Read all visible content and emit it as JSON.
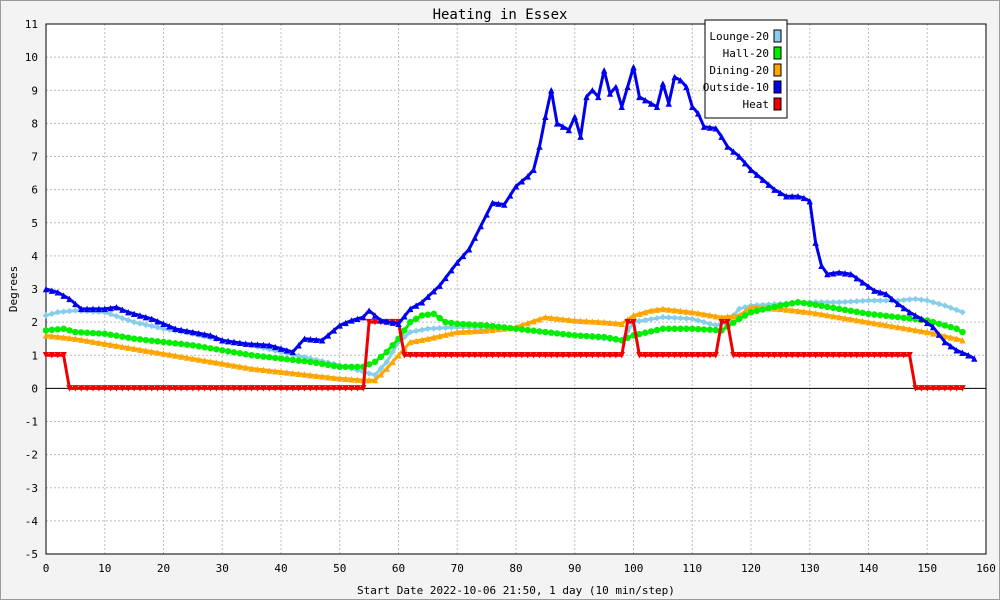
{
  "chart_data": {
    "type": "line",
    "title": "Heating in Essex",
    "xlabel": "Start Date 2022-10-06 21:50, 1 day (10 min/step)",
    "ylabel": "Degrees",
    "xlim": [
      0,
      160
    ],
    "ylim": [
      -5,
      11
    ],
    "xticks": [
      0,
      10,
      20,
      30,
      40,
      50,
      60,
      70,
      80,
      90,
      100,
      110,
      120,
      130,
      140,
      150,
      160
    ],
    "yticks": [
      -5,
      -4,
      -3,
      -2,
      -1,
      0,
      1,
      2,
      3,
      4,
      5,
      6,
      7,
      8,
      9,
      10,
      11
    ],
    "grid": true,
    "legend_position": "top-right",
    "series": [
      {
        "name": "Lounge-20",
        "color": "#87ceeb",
        "marker": "diamond",
        "points": [
          [
            0,
            2.2
          ],
          [
            2,
            2.3
          ],
          [
            5,
            2.35
          ],
          [
            10,
            2.3
          ],
          [
            15,
            2.0
          ],
          [
            20,
            1.8
          ],
          [
            25,
            1.65
          ],
          [
            30,
            1.45
          ],
          [
            35,
            1.3
          ],
          [
            40,
            1.1
          ],
          [
            45,
            0.9
          ],
          [
            50,
            0.7
          ],
          [
            54,
            0.5
          ],
          [
            56,
            0.4
          ],
          [
            58,
            0.8
          ],
          [
            60,
            1.4
          ],
          [
            62,
            1.7
          ],
          [
            65,
            1.8
          ],
          [
            70,
            1.85
          ],
          [
            75,
            1.85
          ],
          [
            80,
            1.8
          ],
          [
            85,
            1.7
          ],
          [
            90,
            1.6
          ],
          [
            95,
            1.5
          ],
          [
            98,
            1.45
          ],
          [
            100,
            2.0
          ],
          [
            105,
            2.15
          ],
          [
            110,
            2.1
          ],
          [
            114,
            1.9
          ],
          [
            116,
            2.0
          ],
          [
            118,
            2.4
          ],
          [
            120,
            2.5
          ],
          [
            125,
            2.55
          ],
          [
            130,
            2.6
          ],
          [
            135,
            2.6
          ],
          [
            140,
            2.65
          ],
          [
            145,
            2.65
          ],
          [
            148,
            2.7
          ],
          [
            150,
            2.65
          ],
          [
            153,
            2.5
          ],
          [
            156,
            2.3
          ]
        ]
      },
      {
        "name": "Hall-20",
        "color": "#00ee00",
        "marker": "circle",
        "points": [
          [
            0,
            1.75
          ],
          [
            3,
            1.8
          ],
          [
            5,
            1.7
          ],
          [
            10,
            1.65
          ],
          [
            15,
            1.5
          ],
          [
            20,
            1.4
          ],
          [
            25,
            1.3
          ],
          [
            30,
            1.15
          ],
          [
            35,
            1.0
          ],
          [
            40,
            0.9
          ],
          [
            45,
            0.8
          ],
          [
            50,
            0.65
          ],
          [
            54,
            0.65
          ],
          [
            56,
            0.8
          ],
          [
            58,
            1.1
          ],
          [
            60,
            1.5
          ],
          [
            62,
            2.0
          ],
          [
            64,
            2.2
          ],
          [
            66,
            2.25
          ],
          [
            68,
            2.0
          ],
          [
            70,
            1.95
          ],
          [
            75,
            1.9
          ],
          [
            80,
            1.8
          ],
          [
            85,
            1.7
          ],
          [
            90,
            1.6
          ],
          [
            95,
            1.55
          ],
          [
            98,
            1.45
          ],
          [
            100,
            1.6
          ],
          [
            105,
            1.8
          ],
          [
            110,
            1.8
          ],
          [
            115,
            1.75
          ],
          [
            118,
            2.1
          ],
          [
            120,
            2.3
          ],
          [
            125,
            2.5
          ],
          [
            128,
            2.6
          ],
          [
            130,
            2.55
          ],
          [
            135,
            2.4
          ],
          [
            140,
            2.25
          ],
          [
            145,
            2.15
          ],
          [
            150,
            2.05
          ],
          [
            155,
            1.8
          ],
          [
            156,
            1.7
          ]
        ]
      },
      {
        "name": "Dining-20",
        "color": "#ffa500",
        "marker": "triangle",
        "points": [
          [
            0,
            1.6
          ],
          [
            5,
            1.5
          ],
          [
            10,
            1.35
          ],
          [
            15,
            1.2
          ],
          [
            20,
            1.05
          ],
          [
            25,
            0.9
          ],
          [
            30,
            0.75
          ],
          [
            35,
            0.6
          ],
          [
            40,
            0.5
          ],
          [
            45,
            0.4
          ],
          [
            50,
            0.3
          ],
          [
            54,
            0.25
          ],
          [
            56,
            0.25
          ],
          [
            58,
            0.6
          ],
          [
            60,
            1.0
          ],
          [
            62,
            1.4
          ],
          [
            65,
            1.5
          ],
          [
            70,
            1.7
          ],
          [
            75,
            1.75
          ],
          [
            80,
            1.85
          ],
          [
            85,
            2.15
          ],
          [
            90,
            2.05
          ],
          [
            95,
            2.0
          ],
          [
            98,
            1.95
          ],
          [
            100,
            2.2
          ],
          [
            103,
            2.35
          ],
          [
            105,
            2.4
          ],
          [
            110,
            2.3
          ],
          [
            115,
            2.15
          ],
          [
            118,
            2.2
          ],
          [
            120,
            2.45
          ],
          [
            125,
            2.4
          ],
          [
            130,
            2.3
          ],
          [
            135,
            2.15
          ],
          [
            140,
            2.0
          ],
          [
            145,
            1.85
          ],
          [
            150,
            1.7
          ],
          [
            155,
            1.5
          ],
          [
            156,
            1.45
          ]
        ]
      },
      {
        "name": "Outside-10",
        "color": "#0000ee",
        "marker": "triangle",
        "points": [
          [
            0,
            3.0
          ],
          [
            2,
            2.9
          ],
          [
            4,
            2.7
          ],
          [
            6,
            2.4
          ],
          [
            10,
            2.4
          ],
          [
            12,
            2.45
          ],
          [
            14,
            2.3
          ],
          [
            18,
            2.1
          ],
          [
            22,
            1.8
          ],
          [
            25,
            1.7
          ],
          [
            28,
            1.6
          ],
          [
            30,
            1.45
          ],
          [
            34,
            1.35
          ],
          [
            38,
            1.3
          ],
          [
            40,
            1.2
          ],
          [
            42,
            1.1
          ],
          [
            44,
            1.5
          ],
          [
            47,
            1.45
          ],
          [
            50,
            1.9
          ],
          [
            52,
            2.05
          ],
          [
            54,
            2.15
          ],
          [
            55,
            2.35
          ],
          [
            57,
            2.05
          ],
          [
            60,
            1.95
          ],
          [
            62,
            2.4
          ],
          [
            64,
            2.6
          ],
          [
            67,
            3.1
          ],
          [
            70,
            3.8
          ],
          [
            72,
            4.2
          ],
          [
            74,
            4.9
          ],
          [
            76,
            5.6
          ],
          [
            78,
            5.55
          ],
          [
            80,
            6.1
          ],
          [
            82,
            6.4
          ],
          [
            83,
            6.6
          ],
          [
            84,
            7.3
          ],
          [
            85,
            8.2
          ],
          [
            86,
            9.0
          ],
          [
            87,
            8.0
          ],
          [
            89,
            7.8
          ],
          [
            90,
            8.2
          ],
          [
            91,
            7.6
          ],
          [
            92,
            8.8
          ],
          [
            93,
            9.0
          ],
          [
            94,
            8.8
          ],
          [
            95,
            9.6
          ],
          [
            96,
            8.9
          ],
          [
            97,
            9.1
          ],
          [
            98,
            8.5
          ],
          [
            99,
            9.1
          ],
          [
            100,
            9.7
          ],
          [
            101,
            8.8
          ],
          [
            103,
            8.6
          ],
          [
            104,
            8.5
          ],
          [
            105,
            9.2
          ],
          [
            106,
            8.6
          ],
          [
            107,
            9.4
          ],
          [
            108,
            9.3
          ],
          [
            109,
            9.1
          ],
          [
            110,
            8.5
          ],
          [
            111,
            8.3
          ],
          [
            112,
            7.9
          ],
          [
            114,
            7.85
          ],
          [
            115,
            7.6
          ],
          [
            116,
            7.3
          ],
          [
            118,
            7.0
          ],
          [
            120,
            6.6
          ],
          [
            122,
            6.3
          ],
          [
            124,
            6.0
          ],
          [
            126,
            5.8
          ],
          [
            128,
            5.8
          ],
          [
            129,
            5.75
          ],
          [
            130,
            5.65
          ],
          [
            131,
            4.4
          ],
          [
            132,
            3.7
          ],
          [
            133,
            3.45
          ],
          [
            135,
            3.5
          ],
          [
            137,
            3.45
          ],
          [
            139,
            3.2
          ],
          [
            141,
            2.95
          ],
          [
            143,
            2.85
          ],
          [
            145,
            2.55
          ],
          [
            147,
            2.3
          ],
          [
            149,
            2.1
          ],
          [
            151,
            1.85
          ],
          [
            153,
            1.4
          ],
          [
            155,
            1.15
          ],
          [
            157,
            1.0
          ],
          [
            158,
            0.9
          ]
        ]
      },
      {
        "name": "Heat",
        "color": "#ee0000",
        "marker": "triangle-down",
        "points": [
          [
            0,
            1
          ],
          [
            3,
            1
          ],
          [
            4,
            0
          ],
          [
            54,
            0
          ],
          [
            55,
            2
          ],
          [
            60,
            2
          ],
          [
            61,
            1
          ],
          [
            98,
            1
          ],
          [
            99,
            2
          ],
          [
            100,
            2
          ],
          [
            101,
            1
          ],
          [
            114,
            1
          ],
          [
            115,
            2
          ],
          [
            116,
            2
          ],
          [
            117,
            1
          ],
          [
            147,
            1
          ],
          [
            148,
            0
          ],
          [
            156,
            0
          ]
        ]
      }
    ]
  }
}
